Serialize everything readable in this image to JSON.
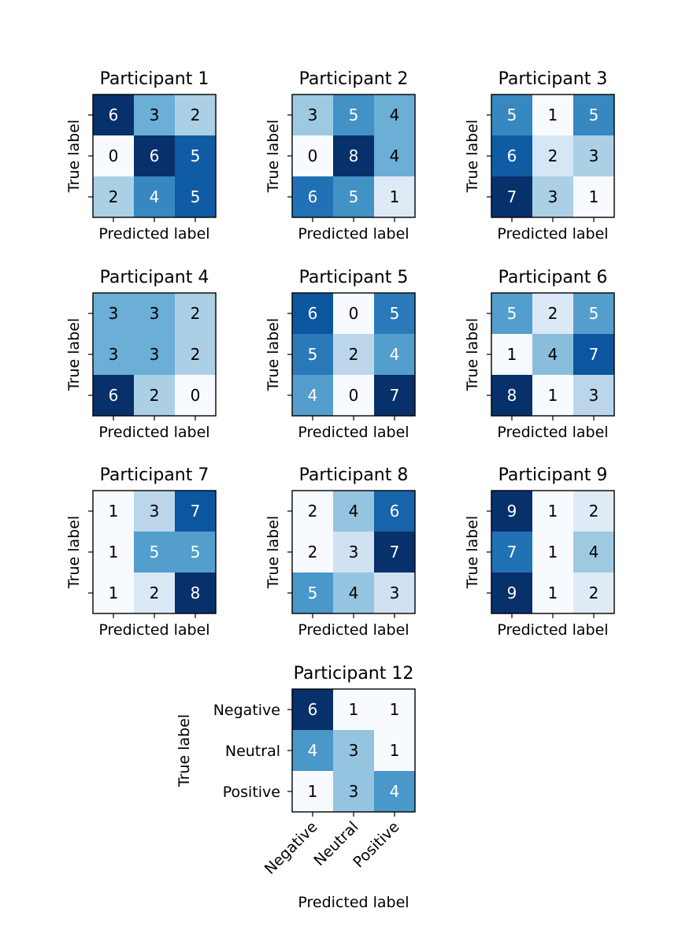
{
  "chart_data": {
    "type": "heatmap",
    "xlabel": "Predicted label",
    "ylabel": "True label",
    "class_labels": [
      "Negative",
      "Neutral",
      "Positive"
    ],
    "colormap": [
      "#f7fbff",
      "#deebf7",
      "#c6dbef",
      "#9ecae1",
      "#6baed6",
      "#4292c6",
      "#2171b5",
      "#08519c",
      "#08306b"
    ],
    "panels": [
      {
        "title": "Participant 1",
        "matrix": [
          [
            6,
            3,
            2
          ],
          [
            0,
            6,
            5
          ],
          [
            2,
            4,
            5
          ]
        ]
      },
      {
        "title": "Participant 2",
        "matrix": [
          [
            3,
            5,
            4
          ],
          [
            0,
            8,
            4
          ],
          [
            6,
            5,
            1
          ]
        ]
      },
      {
        "title": "Participant 3",
        "matrix": [
          [
            5,
            1,
            5
          ],
          [
            6,
            2,
            3
          ],
          [
            7,
            3,
            1
          ]
        ]
      },
      {
        "title": "Participant 4",
        "matrix": [
          [
            3,
            3,
            2
          ],
          [
            3,
            3,
            2
          ],
          [
            6,
            2,
            0
          ]
        ]
      },
      {
        "title": "Participant 5",
        "matrix": [
          [
            6,
            0,
            5
          ],
          [
            5,
            2,
            4
          ],
          [
            4,
            0,
            7
          ]
        ]
      },
      {
        "title": "Participant 6",
        "matrix": [
          [
            5,
            2,
            5
          ],
          [
            1,
            4,
            7
          ],
          [
            8,
            1,
            3
          ]
        ]
      },
      {
        "title": "Participant 7",
        "matrix": [
          [
            1,
            3,
            7
          ],
          [
            1,
            5,
            5
          ],
          [
            1,
            2,
            8
          ]
        ]
      },
      {
        "title": "Participant 8",
        "matrix": [
          [
            2,
            4,
            6
          ],
          [
            2,
            3,
            7
          ],
          [
            5,
            4,
            3
          ]
        ]
      },
      {
        "title": "Participant 9",
        "matrix": [
          [
            9,
            1,
            2
          ],
          [
            7,
            1,
            4
          ],
          [
            9,
            1,
            2
          ]
        ]
      },
      {
        "title": "Participant 12",
        "matrix": [
          [
            6,
            1,
            1
          ],
          [
            4,
            3,
            1
          ],
          [
            1,
            3,
            4
          ]
        ],
        "show_class_labels": true
      }
    ]
  }
}
